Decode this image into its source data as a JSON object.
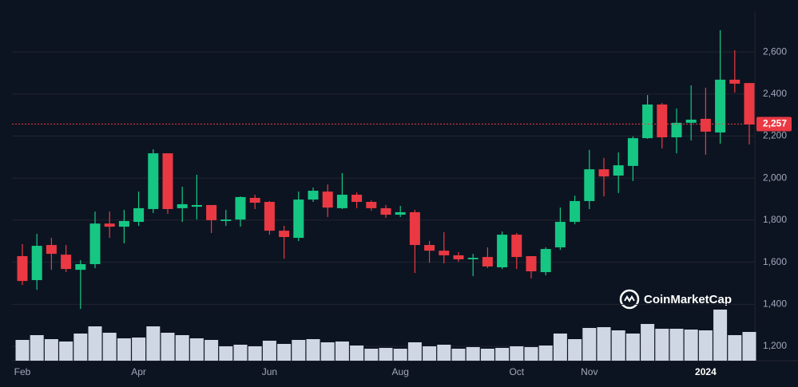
{
  "chart_data": {
    "type": "candlestick",
    "categories": [
      "Feb",
      null,
      null,
      null,
      null,
      null,
      null,
      null,
      "Apr",
      null,
      null,
      null,
      null,
      null,
      null,
      null,
      null,
      "Jun",
      null,
      null,
      null,
      null,
      null,
      null,
      null,
      null,
      "Aug",
      null,
      null,
      null,
      null,
      null,
      null,
      null,
      "Oct",
      null,
      null,
      null,
      null,
      "Nov",
      null,
      null,
      null,
      null,
      null,
      null,
      null,
      "2024",
      null,
      null,
      null
    ],
    "open": [
      1629,
      1515,
      1682,
      1636,
      1564,
      1591,
      1784,
      1769,
      1792,
      1853,
      2118,
      1857,
      1864,
      1872,
      1796,
      1803,
      1906,
      1887,
      1750,
      1716,
      1898,
      1936,
      1857,
      1921,
      1887,
      1857,
      1826,
      1838,
      1682,
      1655,
      1633,
      1614,
      1625,
      1576,
      1731,
      1629,
      1553,
      1671,
      1792,
      1891,
      2042,
      2012,
      2058,
      2190,
      2350,
      2194,
      2263,
      2282,
      2217,
      2468,
      2452
    ],
    "high": [
      1686,
      1735,
      1716,
      1682,
      1610,
      1841,
      1841,
      1849,
      1936,
      2137,
      2118,
      1959,
      2016,
      1872,
      1849,
      1913,
      1921,
      1891,
      1773,
      1936,
      1955,
      1970,
      2024,
      1932,
      1894,
      1872,
      1868,
      1849,
      1701,
      1743,
      1648,
      1640,
      1671,
      1746,
      1739,
      1629,
      1671,
      1860,
      1917,
      2134,
      2096,
      2122,
      2198,
      2395,
      2357,
      2331,
      2441,
      2430,
      2703,
      2608,
      2452
    ],
    "low": [
      1492,
      1469,
      1564,
      1553,
      1378,
      1572,
      1716,
      1690,
      1773,
      1834,
      1830,
      1792,
      1803,
      1739,
      1773,
      1769,
      1853,
      1731,
      1617,
      1701,
      1887,
      1815,
      1853,
      1857,
      1845,
      1811,
      1815,
      1549,
      1598,
      1595,
      1602,
      1534,
      1572,
      1568,
      1568,
      1523,
      1538,
      1659,
      1781,
      1853,
      1913,
      1929,
      1986,
      2187,
      2141,
      2118,
      2179,
      2111,
      2164,
      2407,
      2160
    ],
    "close": [
      1511,
      1678,
      1640,
      1568,
      1591,
      1784,
      1769,
      1796,
      1857,
      2118,
      1853,
      1876,
      1872,
      1800,
      1803,
      1910,
      1883,
      1750,
      1720,
      1898,
      1940,
      1860,
      1921,
      1887,
      1857,
      1826,
      1838,
      1682,
      1655,
      1633,
      1614,
      1621,
      1580,
      1731,
      1625,
      1557,
      1663,
      1792,
      1891,
      2042,
      2008,
      2061,
      2190,
      2350,
      2194,
      2263,
      2278,
      2221,
      2468,
      2449,
      2255
    ],
    "volume": [
      26,
      32,
      27,
      24,
      34,
      43,
      35,
      28,
      29,
      43,
      35,
      32,
      28,
      26,
      18,
      20,
      18,
      25,
      21,
      26,
      27,
      23,
      24,
      19,
      15,
      16,
      15,
      23,
      18,
      20,
      15,
      17,
      15,
      16,
      18,
      17,
      19,
      34,
      27,
      41,
      42,
      38,
      34,
      46,
      40,
      40,
      39,
      38,
      64,
      32,
      36
    ],
    "up_color": "#16c784",
    "down_color": "#ea3943",
    "volume_color": "#cfd6e4",
    "ylim": [
      1132,
      2790
    ],
    "yticks": [
      {
        "value": 1200,
        "label": "1,200"
      },
      {
        "value": 1400,
        "label": "1,400"
      },
      {
        "value": 1600,
        "label": "1,600"
      },
      {
        "value": 1800,
        "label": "1,800"
      },
      {
        "value": 2000,
        "label": "2,000"
      },
      {
        "value": 2200,
        "label": "2,200"
      },
      {
        "value": 2400,
        "label": "2,400"
      },
      {
        "value": 2600,
        "label": "2,600"
      }
    ],
    "current_price": {
      "value": 2257,
      "label": "2,257"
    },
    "watermark": "CoinMarketCap",
    "grid": true
  }
}
